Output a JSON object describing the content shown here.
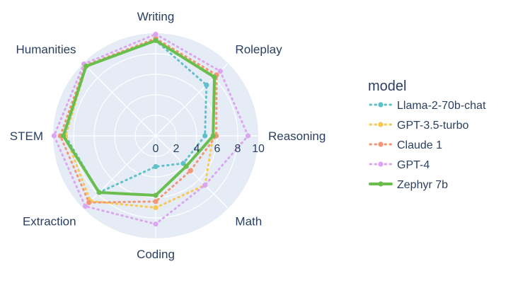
{
  "chart_data": {
    "type": "radar",
    "categories": [
      "Writing",
      "Roleplay",
      "Reasoning",
      "Math",
      "Coding",
      "Extraction",
      "STEM",
      "Humanities"
    ],
    "rmax": 10,
    "radial_ticks": [
      "0",
      "2",
      "4",
      "6",
      "8",
      "10"
    ],
    "legend_title": "model",
    "series": [
      {
        "name": "Llama-2-70b-chat",
        "color": "#5ec0c9",
        "dash": "dot",
        "values": [
          9.3,
          7.0,
          4.8,
          3.8,
          3.0,
          7.8,
          8.8,
          9.6
        ]
      },
      {
        "name": "GPT-3.5-turbo",
        "color": "#f8c94f",
        "dash": "dot",
        "values": [
          9.4,
          8.2,
          5.6,
          6.8,
          7.0,
          9.0,
          8.8,
          9.6
        ]
      },
      {
        "name": "Claude 1",
        "color": "#f29673",
        "dash": "dot",
        "values": [
          9.5,
          8.4,
          5.9,
          4.8,
          6.4,
          9.2,
          9.3,
          9.7
        ]
      },
      {
        "name": "GPT-4",
        "color": "#dba6f0",
        "dash": "dot",
        "values": [
          9.9,
          8.9,
          9.0,
          6.8,
          8.6,
          9.7,
          9.9,
          9.9
        ]
      },
      {
        "name": "Zephyr 7b",
        "color": "#6abe4d",
        "dash": "solid",
        "values": [
          9.3,
          8.1,
          5.6,
          4.2,
          5.8,
          7.8,
          9.0,
          9.6
        ]
      }
    ]
  }
}
